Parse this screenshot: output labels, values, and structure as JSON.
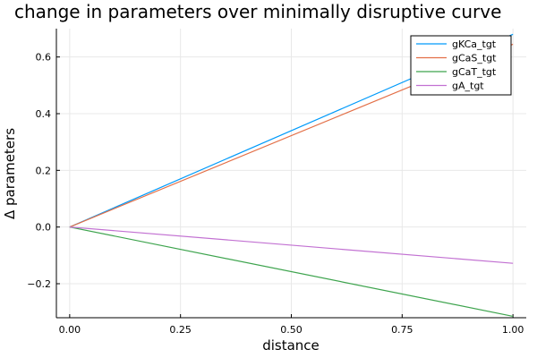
{
  "chart_data": {
    "type": "line",
    "title": "change in parameters over minimally disruptive curve",
    "xlabel": "distance",
    "ylabel": "Δ parameters",
    "xlim": [
      -0.03,
      1.03
    ],
    "ylim": [
      -0.32,
      0.7
    ],
    "xticks": [
      0.0,
      0.25,
      0.5,
      0.75,
      1.0
    ],
    "xtick_labels": [
      "0.00",
      "0.25",
      "0.50",
      "0.75",
      "1.00"
    ],
    "yticks": [
      -0.2,
      0.0,
      0.2,
      0.4,
      0.6
    ],
    "ytick_labels": [
      "−0.2",
      "0.0",
      "0.2",
      "0.4",
      "0.6"
    ],
    "grid": true,
    "legend_position": "top-right",
    "series": [
      {
        "name": "gKCa_tgt",
        "color": "#009AFA",
        "x": [
          0.0,
          1.0
        ],
        "y": [
          0.0,
          0.68
        ]
      },
      {
        "name": "gCaS_tgt",
        "color": "#E36F47",
        "x": [
          0.0,
          1.0
        ],
        "y": [
          0.0,
          0.645
        ]
      },
      {
        "name": "gCaT_tgt",
        "color": "#3EA44E",
        "x": [
          0.0,
          1.0
        ],
        "y": [
          0.0,
          -0.315
        ]
      },
      {
        "name": "gA_tgt",
        "color": "#C271D2",
        "x": [
          0.0,
          1.0
        ],
        "y": [
          0.0,
          -0.128
        ]
      }
    ]
  }
}
